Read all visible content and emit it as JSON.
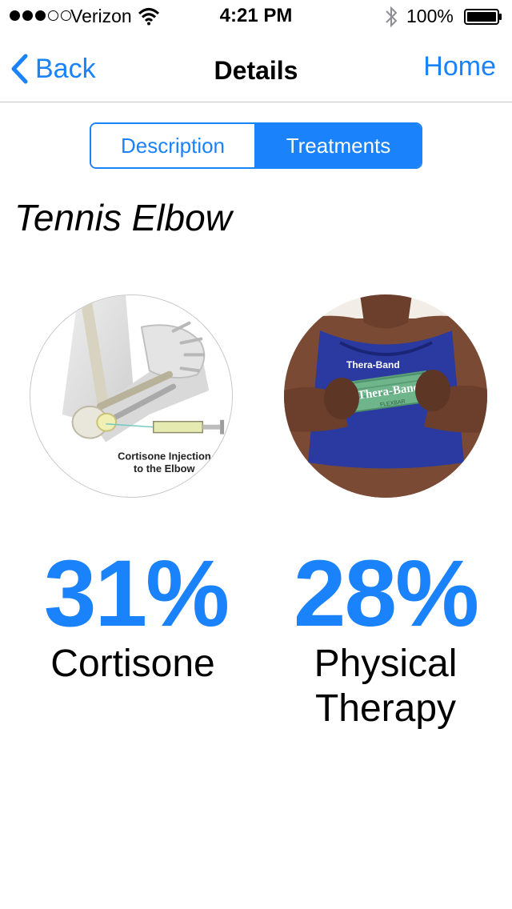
{
  "status_bar": {
    "signal_bars_filled": 3,
    "signal_bars_total": 5,
    "carrier": "Verizon",
    "time": "4:21 PM",
    "battery_percent": "100%"
  },
  "nav": {
    "back_label": "Back",
    "title": "Details",
    "home_label": "Home"
  },
  "segmented": {
    "description_label": "Description",
    "treatments_label": "Treatments",
    "selected": "Treatments"
  },
  "condition": {
    "title": "Tennis Elbow"
  },
  "treatments": [
    {
      "percent": "31%",
      "label": "Cortisone",
      "image_caption_line1": "Cortisone Injection",
      "image_caption_line2": "to the Elbow"
    },
    {
      "percent": "28%",
      "label": "Physical Therapy",
      "image_brand_top": "Thera-Band",
      "image_brand_bar": "Thera-Band",
      "image_brand_sub": "FLEXBAR"
    }
  ],
  "colors": {
    "accent": "#1a82fb",
    "separator": "#c8c7cc"
  }
}
